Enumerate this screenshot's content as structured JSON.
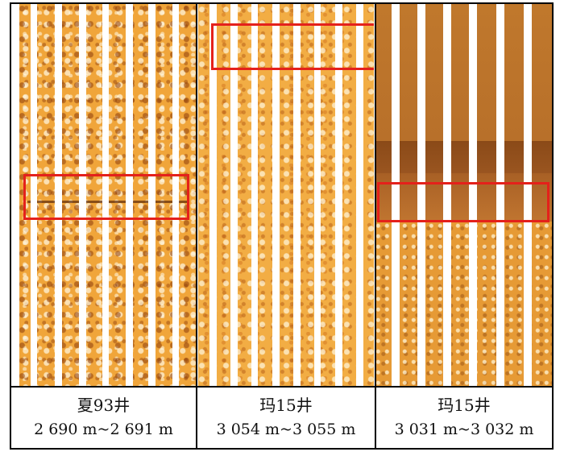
{
  "panels": [
    {
      "well": "夏93井",
      "depth": "2 690 m~2 691 m"
    },
    {
      "well": "玛15井",
      "depth": "3 054 m~3 055 m"
    },
    {
      "well": "玛15井",
      "depth": "3 031 m~3 032 m"
    }
  ],
  "colors": {
    "border": "#000000",
    "highlight": "#e4211b",
    "core_light": "#f0a53a",
    "core_dark": "#8a4a18",
    "strip_gap": "#ffffff"
  }
}
